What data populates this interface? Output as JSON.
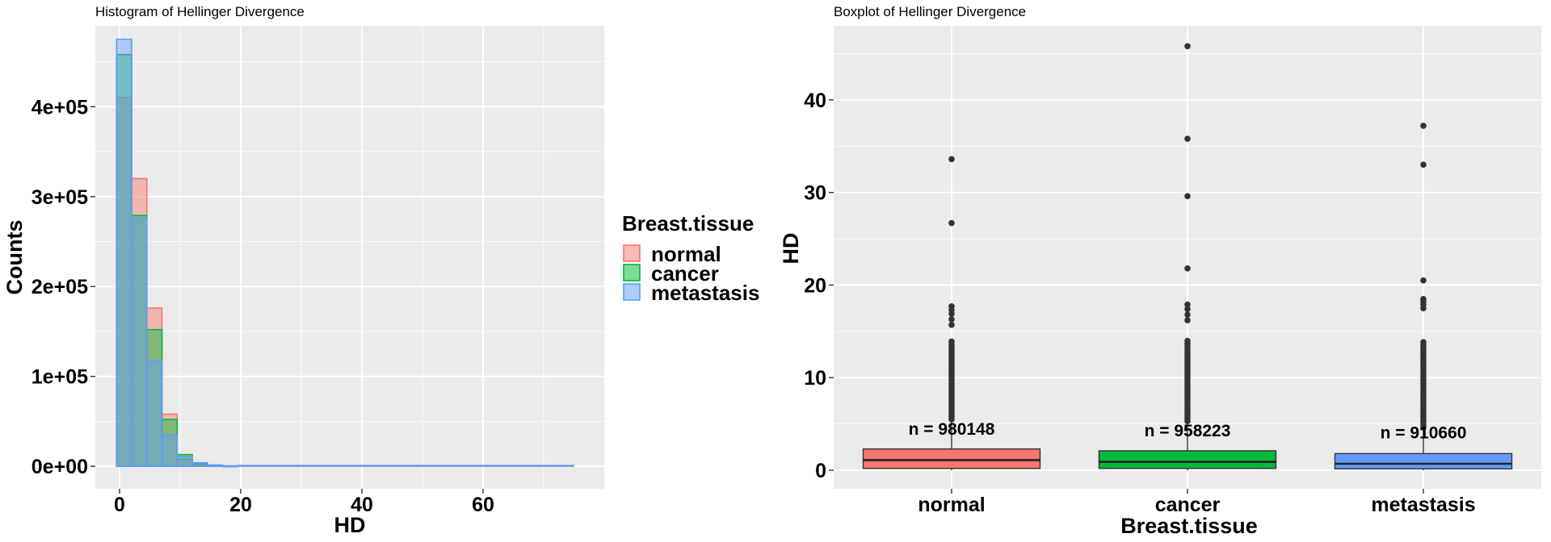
{
  "chart_data": [
    {
      "type": "histogram",
      "title": "Histogram of Hellinger Divergence",
      "xlabel": "HD",
      "ylabel": "Counts",
      "xlim": [
        -4,
        80
      ],
      "ylim": [
        -25000,
        490000
      ],
      "x_ticks": [
        0,
        20,
        40,
        60
      ],
      "x_tick_labels": [
        "0",
        "20",
        "40",
        "60"
      ],
      "y_ticks": [
        0,
        100000,
        200000,
        300000,
        400000
      ],
      "y_tick_labels": [
        "0e+00",
        "1e+05",
        "2e+05",
        "3e+05",
        "4e+05"
      ],
      "grid": true,
      "bin_width": 2.5,
      "bin_starts": [
        -0.5,
        2.0,
        4.5,
        7.0,
        9.5,
        12.0
      ],
      "histogram_xmax": 75,
      "legend": {
        "title": "Breast.tissue",
        "placement": "right",
        "entries": [
          "normal",
          "cancer",
          "metastasis"
        ]
      },
      "series": [
        {
          "name": "normal",
          "fill": "#F8766D",
          "values": [
            410000,
            320000,
            176000,
            58000,
            8000,
            1500,
            600,
            300
          ]
        },
        {
          "name": "cancer",
          "fill": "#00BA38",
          "values": [
            458000,
            279000,
            152000,
            52000,
            13000,
            3000,
            800,
            300
          ]
        },
        {
          "name": "metastasis",
          "fill": "#619CFF",
          "values": [
            475000,
            276000,
            118000,
            35000,
            11000,
            4000,
            1500,
            500
          ]
        }
      ]
    },
    {
      "type": "boxplot",
      "title": "Boxplot of Hellinger Divergence",
      "xlabel": "Breast.tissue",
      "ylabel": "HD",
      "ylim": [
        -2,
        48
      ],
      "y_ticks": [
        0,
        10,
        20,
        30,
        40
      ],
      "y_tick_labels": [
        "0",
        "10",
        "20",
        "30",
        "40"
      ],
      "grid": true,
      "categories": [
        "normal",
        "cancer",
        "metastasis"
      ],
      "boxes": [
        {
          "name": "normal",
          "fill": "#F8766D",
          "min": 0,
          "q1": 0.2,
          "median": 1.1,
          "q3": 2.3,
          "whisker_high": 5.5,
          "n_label": "n = 980148",
          "n_label_y": 4.2,
          "outliers": [
            33.6,
            26.7,
            17.7,
            17.3,
            16.9,
            16.3,
            15.7
          ]
        },
        {
          "name": "cancer",
          "fill": "#00BA38",
          "min": 0,
          "q1": 0.2,
          "median": 0.9,
          "q3": 2.1,
          "whisker_high": 5.3,
          "n_label": "n = 958223",
          "n_label_y": 4.0,
          "outliers": [
            45.8,
            35.8,
            29.6,
            21.8,
            17.9,
            17.4,
            16.8,
            16.2
          ]
        },
        {
          "name": "metastasis",
          "fill": "#619CFF",
          "min": 0,
          "q1": 0.15,
          "median": 0.7,
          "q3": 1.8,
          "whisker_high": 4.6,
          "n_label": "n = 910660",
          "n_label_y": 3.8,
          "outliers": [
            37.2,
            33.0,
            20.5,
            18.5,
            18.2,
            17.9,
            17.5
          ]
        }
      ]
    }
  ]
}
